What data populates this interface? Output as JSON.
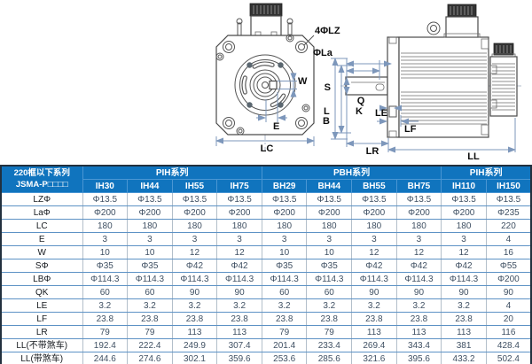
{
  "drawing": {
    "labels": {
      "lz": "4ΦLZ",
      "la": "ΦLa",
      "w": "W",
      "e": "E",
      "lc": "LC",
      "s": "S",
      "q": "Q",
      "k": "K",
      "l": "L",
      "b": "B",
      "le": "LE",
      "lf": "LF",
      "lr": "LR",
      "ll": "LL"
    }
  },
  "table": {
    "corner_line1": "220框以下系列",
    "corner_line2": "JSMA-P□□□□",
    "groups": [
      {
        "label": "PIH系列",
        "span": 4
      },
      {
        "label": "PBH系列",
        "span": 4
      },
      {
        "label": "PIH系列",
        "span": 2
      }
    ],
    "columns": [
      "IH30",
      "IH44",
      "IH55",
      "IH75",
      "BH29",
      "BH44",
      "BH55",
      "BH75",
      "IH110",
      "IH150"
    ],
    "rows": [
      {
        "label": "LZΦ",
        "values": [
          "Φ13.5",
          "Φ13.5",
          "Φ13.5",
          "Φ13.5",
          "Φ13.5",
          "Φ13.5",
          "Φ13.5",
          "Φ13.5",
          "Φ13.5",
          "Φ13.5"
        ]
      },
      {
        "label": "LaΦ",
        "values": [
          "Φ200",
          "Φ200",
          "Φ200",
          "Φ200",
          "Φ200",
          "Φ200",
          "Φ200",
          "Φ200",
          "Φ200",
          "Φ235"
        ]
      },
      {
        "label": "LC",
        "values": [
          "180",
          "180",
          "180",
          "180",
          "180",
          "180",
          "180",
          "180",
          "180",
          "220"
        ]
      },
      {
        "label": "E",
        "values": [
          "3",
          "3",
          "3",
          "3",
          "3",
          "3",
          "3",
          "3",
          "3",
          "4"
        ]
      },
      {
        "label": "W",
        "values": [
          "10",
          "10",
          "12",
          "12",
          "10",
          "10",
          "12",
          "12",
          "12",
          "16"
        ]
      },
      {
        "label": "SΦ",
        "values": [
          "Φ35",
          "Φ35",
          "Φ42",
          "Φ42",
          "Φ35",
          "Φ35",
          "Φ42",
          "Φ42",
          "Φ42",
          "Φ55"
        ]
      },
      {
        "label": "LBΦ",
        "values": [
          "Φ114.3",
          "Φ114.3",
          "Φ114.3",
          "Φ114.3",
          "Φ114.3",
          "Φ114.3",
          "Φ114.3",
          "Φ114.3",
          "Φ114.3",
          "Φ200"
        ]
      },
      {
        "label": "QK",
        "values": [
          "60",
          "60",
          "90",
          "90",
          "60",
          "60",
          "90",
          "90",
          "90",
          "90"
        ]
      },
      {
        "label": "LE",
        "values": [
          "3.2",
          "3.2",
          "3.2",
          "3.2",
          "3.2",
          "3.2",
          "3.2",
          "3.2",
          "3.2",
          "4"
        ]
      },
      {
        "label": "LF",
        "values": [
          "23.8",
          "23.8",
          "23.8",
          "23.8",
          "23.8",
          "23.8",
          "23.8",
          "23.8",
          "23.8",
          "20"
        ]
      },
      {
        "label": "LR",
        "values": [
          "79",
          "79",
          "113",
          "113",
          "79",
          "79",
          "113",
          "113",
          "113",
          "116"
        ]
      },
      {
        "label": "LL(不带煞车)",
        "values": [
          "192.4",
          "222.4",
          "249.9",
          "307.4",
          "201.4",
          "233.4",
          "269.4",
          "343.4",
          "381",
          "428.4"
        ]
      },
      {
        "label": "LL(带煞车)",
        "values": [
          "244.6",
          "274.6",
          "302.1",
          "359.6",
          "253.6",
          "285.6",
          "321.6",
          "395.6",
          "433.2",
          "502.4"
        ]
      }
    ]
  },
  "colors": {
    "header_bg": "#1074be",
    "header_text": "#ffffff",
    "row_border": "#5d92c5",
    "outer_border": "#22303e",
    "dimension_line": "#7d97bb"
  }
}
